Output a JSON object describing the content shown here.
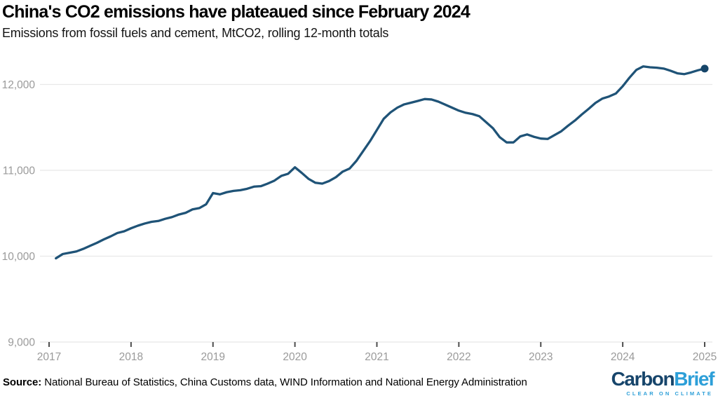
{
  "header": {
    "title": "China's CO2 emissions have plateaued since February 2024",
    "subtitle": "Emissions from fossil fuels and cement, MtCO2, rolling 12-month totals"
  },
  "footer": {
    "source_label": "Source:",
    "source_text": " National Bureau of Statistics, China Customs data, WIND Information and National Energy Administration"
  },
  "logo": {
    "name_part1": "Carbon",
    "name_part2": "Brief",
    "tagline": "CLEAR ON CLIMATE",
    "color_dark": "#17456B",
    "color_light": "#2D9FD8"
  },
  "chart_data": {
    "type": "line",
    "title": "China's CO2 emissions have plateaued since February 2024",
    "subtitle": "Emissions from fossil fuels and cement, MtCO2, rolling 12-month totals",
    "unit": "MtCO2",
    "grid": true,
    "legend": "none",
    "line_color": "#1F5377",
    "marker_color": "#164569",
    "grid_color": "#E8E8E8",
    "axis_label_color": "#9A9A9A",
    "tick_color": "#4D4D4D",
    "ylim": [
      8900,
      12450
    ],
    "xlim": [
      2017,
      2025
    ],
    "y_ticks": [
      {
        "value": 9000,
        "label": "9,000"
      },
      {
        "value": 10000,
        "label": "10,000"
      },
      {
        "value": 11000,
        "label": "11,000"
      },
      {
        "value": 12000,
        "label": "12,000"
      }
    ],
    "x_ticks": [
      {
        "value": 2017,
        "label": "2017"
      },
      {
        "value": 2018,
        "label": "2018"
      },
      {
        "value": 2019,
        "label": "2019"
      },
      {
        "value": 2020,
        "label": "2020"
      },
      {
        "value": 2021,
        "label": "2021"
      },
      {
        "value": 2022,
        "label": "2022"
      },
      {
        "value": 2023,
        "label": "2023"
      },
      {
        "value": 2024,
        "label": "2024"
      },
      {
        "value": 2025,
        "label": "2025"
      }
    ],
    "series": [
      {
        "name": "Rolling 12-month CO2 emissions (MtCO2)",
        "start_month": "2017-02",
        "end_month": "2025-01",
        "monthly_values": [
          9975,
          10025,
          10040,
          10055,
          10085,
          10120,
          10155,
          10195,
          10230,
          10270,
          10290,
          10325,
          10355,
          10380,
          10400,
          10410,
          10435,
          10455,
          10485,
          10505,
          10545,
          10560,
          10605,
          10735,
          10720,
          10745,
          10760,
          10768,
          10785,
          10810,
          10815,
          10845,
          10880,
          10935,
          10960,
          11035,
          10970,
          10900,
          10855,
          10845,
          10875,
          10920,
          10985,
          11020,
          11110,
          11225,
          11340,
          11470,
          11600,
          11675,
          11730,
          11768,
          11788,
          11808,
          11830,
          11825,
          11800,
          11765,
          11730,
          11695,
          11670,
          11655,
          11630,
          11560,
          11490,
          11385,
          11325,
          11325,
          11395,
          11418,
          11390,
          11370,
          11365,
          11410,
          11455,
          11520,
          11580,
          11650,
          11715,
          11785,
          11835,
          11860,
          11895,
          11980,
          12080,
          12170,
          12210,
          12200,
          12195,
          12185,
          12160,
          12130,
          12120,
          12140,
          12165,
          12185
        ]
      }
    ],
    "end_point_marker": {
      "month": "2025-01",
      "value": 12185
    }
  }
}
